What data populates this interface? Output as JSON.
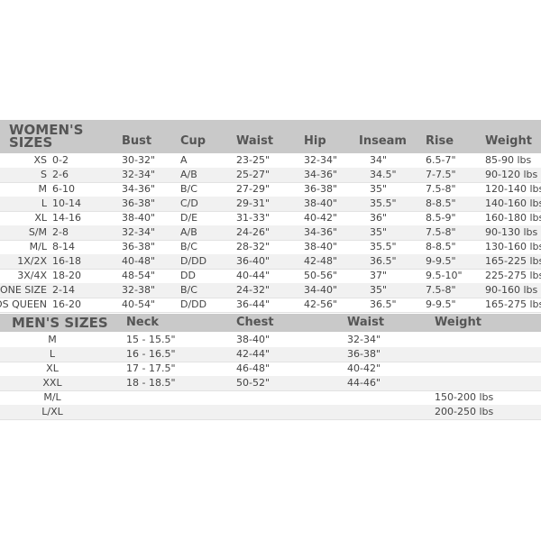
{
  "women": {
    "title_line1": "WOMEN'S",
    "title_line2": "SIZES",
    "headers": [
      "Bust",
      "Cup",
      "Waist",
      "Hip",
      "Inseam",
      "Rise",
      "Weight"
    ],
    "rows": [
      [
        "XS",
        "0-2",
        "30-32\"",
        "A",
        "23-25\"",
        "32-34\"",
        "34\"",
        "6.5-7\"",
        "85-90 lbs"
      ],
      [
        "S",
        "2-6",
        "32-34\"",
        "A/B",
        "25-27\"",
        "34-36\"",
        "34.5\"",
        "7-7.5\"",
        "90-120 lbs"
      ],
      [
        "M",
        "6-10",
        "34-36\"",
        "B/C",
        "27-29\"",
        "36-38\"",
        "35\"",
        "7.5-8\"",
        "120-140 lbs"
      ],
      [
        "L",
        "10-14",
        "36-38\"",
        "C/D",
        "29-31\"",
        "38-40\"",
        "35.5\"",
        "8-8.5\"",
        "140-160 lbs"
      ],
      [
        "XL",
        "14-16",
        "38-40\"",
        "D/E",
        "31-33\"",
        "40-42\"",
        "36\"",
        "8.5-9\"",
        "160-180 lbs"
      ],
      [
        "S/M",
        "2-8",
        "32-34\"",
        "A/B",
        "24-26\"",
        "34-36\"",
        "35\"",
        "7.5-8\"",
        "90-130 lbs"
      ],
      [
        "M/L",
        "8-14",
        "36-38\"",
        "B/C",
        "28-32\"",
        "38-40\"",
        "35.5\"",
        "8-8.5\"",
        "130-160 lbs"
      ],
      [
        "1X/2X",
        "16-18",
        "40-48\"",
        "D/DD",
        "36-40\"",
        "42-48\"",
        "36.5\"",
        "9-9.5\"",
        "165-225 lbs"
      ],
      [
        "3X/4X",
        "18-20",
        "48-54\"",
        "DD",
        "40-44\"",
        "50-56\"",
        "37\"",
        "9.5-10\"",
        "225-275 lbs"
      ],
      [
        "ONE SIZE",
        "2-14",
        "32-38\"",
        "B/C",
        "24-32\"",
        "34-40\"",
        "35\"",
        "7.5-8\"",
        "90-160 lbs"
      ],
      [
        "OS QUEEN",
        "16-20",
        "40-54\"",
        "D/DD",
        "36-44\"",
        "42-56\"",
        "36.5\"",
        "9-9.5\"",
        "165-275 lbs"
      ]
    ]
  },
  "men": {
    "title": "MEN'S SIZES",
    "headers": [
      "Neck",
      "Chest",
      "Waist",
      "Weight"
    ],
    "rows": [
      [
        "M",
        "15 - 15.5\"",
        "38-40\"",
        "32-34\"",
        ""
      ],
      [
        "L",
        "16 - 16.5\"",
        "42-44\"",
        "36-38\"",
        ""
      ],
      [
        "XL",
        "17 - 17.5\"",
        "46-48\"",
        "40-42\"",
        ""
      ],
      [
        "XXL",
        "18 - 18.5\"",
        "50-52\"",
        "44-46\"",
        ""
      ],
      [
        "M/L",
        "",
        "",
        "",
        "150-200 lbs"
      ],
      [
        "L/XL",
        "",
        "",
        "",
        "200-250 lbs"
      ]
    ]
  },
  "colors": {
    "header_band": "#c9c9c9",
    "alt_row": "#f1f1f1",
    "text": "#444444"
  }
}
